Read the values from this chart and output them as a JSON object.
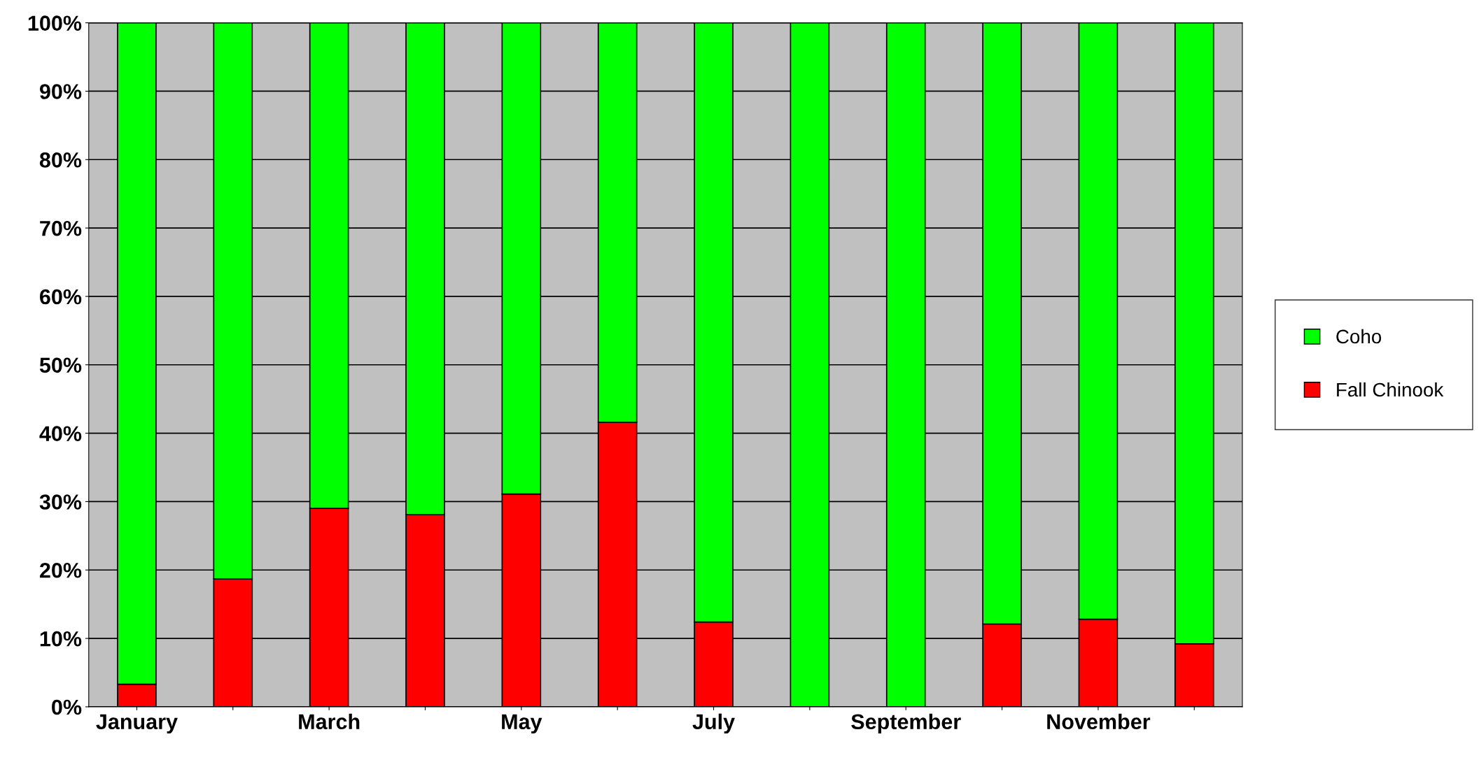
{
  "chart_data": {
    "type": "bar",
    "stacked": true,
    "categories": [
      "January",
      null,
      "March",
      null,
      "May",
      null,
      "July",
      null,
      "September",
      null,
      "November",
      null
    ],
    "series": [
      {
        "name": "Fall Chinook",
        "color": "#ff0000",
        "values": [
          3.3,
          18.7,
          29.0,
          28.1,
          31.1,
          41.6,
          12.4,
          0,
          0,
          12.1,
          12.8,
          9.2
        ]
      },
      {
        "name": "Coho",
        "color": "#00ff00",
        "values": [
          96.7,
          81.3,
          71.0,
          71.9,
          68.9,
          58.4,
          87.6,
          100,
          100,
          87.9,
          87.2,
          90.8
        ]
      }
    ],
    "ylim": [
      0,
      100
    ],
    "yticks": [
      {
        "value": 0,
        "label": "0%"
      },
      {
        "value": 10,
        "label": "10%"
      },
      {
        "value": 20,
        "label": "20%"
      },
      {
        "value": 30,
        "label": "30%"
      },
      {
        "value": 40,
        "label": "40%"
      },
      {
        "value": 50,
        "label": "50%"
      },
      {
        "value": 60,
        "label": "60%"
      },
      {
        "value": 70,
        "label": "70%"
      },
      {
        "value": 80,
        "label": "80%"
      },
      {
        "value": 90,
        "label": "90%"
      },
      {
        "value": 100,
        "label": "100%"
      }
    ],
    "grid": "y",
    "legend": "right"
  }
}
